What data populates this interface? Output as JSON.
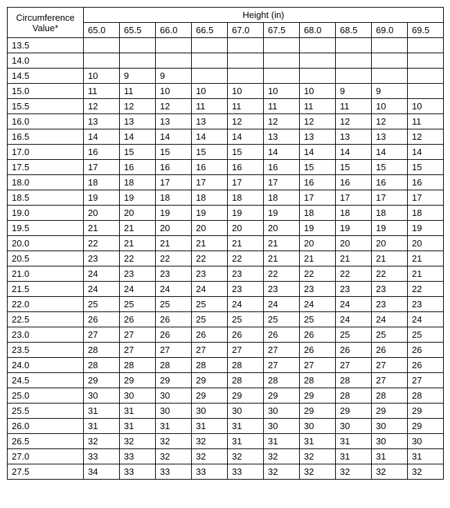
{
  "table": {
    "type": "table",
    "row_header_label_line1": "Circumference",
    "row_header_label_line2": "Value*",
    "col_group_label": "Height (in)",
    "columns": [
      "65.0",
      "65.5",
      "66.0",
      "66.5",
      "67.0",
      "67.5",
      "68.0",
      "68.5",
      "69.0",
      "69.5"
    ],
    "rows": [
      {
        "label": "13.5",
        "cells": [
          "",
          "",
          "",
          "",
          "",
          "",
          "",
          "",
          "",
          ""
        ]
      },
      {
        "label": "14.0",
        "cells": [
          "",
          "",
          "",
          "",
          "",
          "",
          "",
          "",
          "",
          ""
        ]
      },
      {
        "label": "14.5",
        "cells": [
          "10",
          "9",
          "9",
          "",
          "",
          "",
          "",
          "",
          "",
          ""
        ]
      },
      {
        "label": "15.0",
        "cells": [
          "11",
          "11",
          "10",
          "10",
          "10",
          "10",
          "10",
          "9",
          "9",
          ""
        ]
      },
      {
        "label": "15.5",
        "cells": [
          "12",
          "12",
          "12",
          "11",
          "11",
          "11",
          "11",
          "11",
          "10",
          "10"
        ]
      },
      {
        "label": "16.0",
        "cells": [
          "13",
          "13",
          "13",
          "13",
          "12",
          "12",
          "12",
          "12",
          "12",
          "11"
        ]
      },
      {
        "label": "16.5",
        "cells": [
          "14",
          "14",
          "14",
          "14",
          "14",
          "13",
          "13",
          "13",
          "13",
          "12"
        ]
      },
      {
        "label": "17.0",
        "cells": [
          "16",
          "15",
          "15",
          "15",
          "15",
          "14",
          "14",
          "14",
          "14",
          "14"
        ]
      },
      {
        "label": "17.5",
        "cells": [
          "17",
          "16",
          "16",
          "16",
          "16",
          "16",
          "15",
          "15",
          "15",
          "15"
        ]
      },
      {
        "label": "18.0",
        "cells": [
          "18",
          "18",
          "17",
          "17",
          "17",
          "17",
          "16",
          "16",
          "16",
          "16"
        ]
      },
      {
        "label": "18.5",
        "cells": [
          "19",
          "19",
          "18",
          "18",
          "18",
          "18",
          "17",
          "17",
          "17",
          "17"
        ]
      },
      {
        "label": "19.0",
        "cells": [
          "20",
          "20",
          "19",
          "19",
          "19",
          "19",
          "18",
          "18",
          "18",
          "18"
        ]
      },
      {
        "label": "19.5",
        "cells": [
          "21",
          "21",
          "20",
          "20",
          "20",
          "20",
          "19",
          "19",
          "19",
          "19"
        ]
      },
      {
        "label": "20.0",
        "cells": [
          "22",
          "21",
          "21",
          "21",
          "21",
          "21",
          "20",
          "20",
          "20",
          "20"
        ]
      },
      {
        "label": "20.5",
        "cells": [
          "23",
          "22",
          "22",
          "22",
          "22",
          "21",
          "21",
          "21",
          "21",
          "21"
        ]
      },
      {
        "label": "21.0",
        "cells": [
          "24",
          "23",
          "23",
          "23",
          "23",
          "22",
          "22",
          "22",
          "22",
          "21"
        ]
      },
      {
        "label": "21.5",
        "cells": [
          "24",
          "24",
          "24",
          "24",
          "23",
          "23",
          "23",
          "23",
          "23",
          "22"
        ]
      },
      {
        "label": "22.0",
        "cells": [
          "25",
          "25",
          "25",
          "25",
          "24",
          "24",
          "24",
          "24",
          "23",
          "23"
        ]
      },
      {
        "label": "22.5",
        "cells": [
          "26",
          "26",
          "26",
          "25",
          "25",
          "25",
          "25",
          "24",
          "24",
          "24"
        ]
      },
      {
        "label": "23.0",
        "cells": [
          "27",
          "27",
          "26",
          "26",
          "26",
          "26",
          "26",
          "25",
          "25",
          "25"
        ]
      },
      {
        "label": "23.5",
        "cells": [
          "28",
          "27",
          "27",
          "27",
          "27",
          "27",
          "26",
          "26",
          "26",
          "26"
        ]
      },
      {
        "label": "24.0",
        "cells": [
          "28",
          "28",
          "28",
          "28",
          "28",
          "27",
          "27",
          "27",
          "27",
          "26"
        ]
      },
      {
        "label": "24.5",
        "cells": [
          "29",
          "29",
          "29",
          "29",
          "28",
          "28",
          "28",
          "28",
          "27",
          "27"
        ]
      },
      {
        "label": "25.0",
        "cells": [
          "30",
          "30",
          "30",
          "29",
          "29",
          "29",
          "29",
          "28",
          "28",
          "28"
        ]
      },
      {
        "label": "25.5",
        "cells": [
          "31",
          "31",
          "30",
          "30",
          "30",
          "30",
          "29",
          "29",
          "29",
          "29"
        ]
      },
      {
        "label": "26.0",
        "cells": [
          "31",
          "31",
          "31",
          "31",
          "31",
          "30",
          "30",
          "30",
          "30",
          "29"
        ]
      },
      {
        "label": "26.5",
        "cells": [
          "32",
          "32",
          "32",
          "32",
          "31",
          "31",
          "31",
          "31",
          "30",
          "30"
        ]
      },
      {
        "label": "27.0",
        "cells": [
          "33",
          "33",
          "32",
          "32",
          "32",
          "32",
          "32",
          "31",
          "31",
          "31"
        ]
      },
      {
        "label": "27.5",
        "cells": [
          "34",
          "33",
          "33",
          "33",
          "33",
          "32",
          "32",
          "32",
          "32",
          "32"
        ]
      }
    ],
    "border_color": "#000000",
    "background_color": "#ffffff",
    "text_color": "#000000",
    "font_size_pt": 10
  }
}
